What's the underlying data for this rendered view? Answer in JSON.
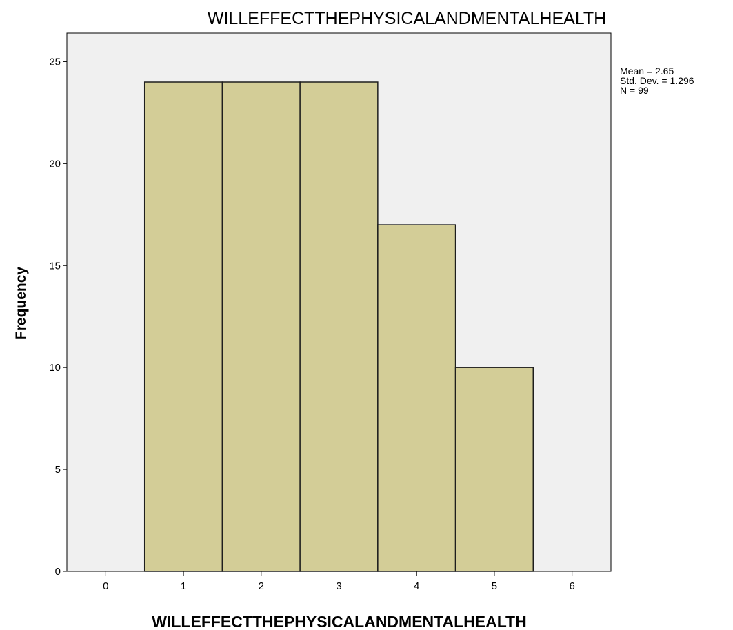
{
  "chart_data": {
    "type": "bar",
    "title": "WILLEFFECTTHEPHYSICALANDMENTALHEALTH",
    "xlabel": "WILLEFFECTTHEPHYSICALANDMENTALHEALTH",
    "ylabel": "Frequency",
    "categories": [
      "1",
      "2",
      "3",
      "4",
      "5"
    ],
    "values": [
      24,
      24,
      24,
      17,
      10
    ],
    "x_ticks": [
      "0",
      "1",
      "2",
      "3",
      "4",
      "5",
      "6"
    ],
    "y_ticks": [
      "0",
      "5",
      "10",
      "15",
      "20",
      "25"
    ],
    "xlim": [
      -0.5,
      6.5
    ],
    "ylim": [
      0,
      26.4
    ],
    "grid": false,
    "legend": "none",
    "stats": {
      "mean": "Mean = 2.65",
      "std_dev": "Std. Dev. = 1.296",
      "n": "N = 99"
    },
    "colors": {
      "bar_fill": "#d3cd97",
      "bar_stroke": "#1e1e1e",
      "plot_background": "#f0f0f0",
      "axis": "#000000"
    }
  }
}
